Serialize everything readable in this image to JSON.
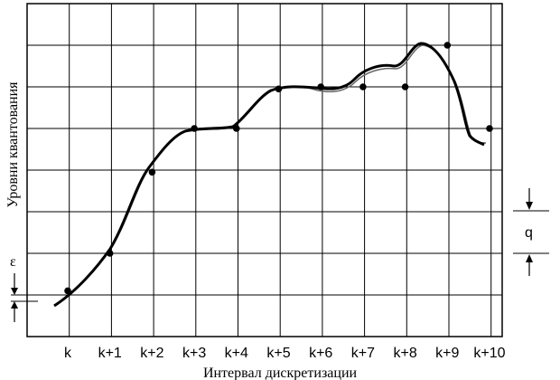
{
  "diagram": {
    "x_axis_label": "Интервал дискретизации",
    "y_axis_label": "Уровни квантования",
    "x_ticks": [
      "k",
      "k+1",
      "k+2",
      "k+3",
      "k+4",
      "k+5",
      "k+6",
      "k+7",
      "k+8",
      "k+9",
      "k+10"
    ],
    "epsilon_label": "ε",
    "q_label": "q",
    "grid": true,
    "sample_levels": [
      0.1,
      1.0,
      2.95,
      4.0,
      4.0,
      4.95,
      5.0,
      5.0,
      5.0,
      6.0,
      4.0
    ],
    "colors": {
      "line": "#000000",
      "grid": "#000000",
      "background": "#ffffff"
    }
  }
}
